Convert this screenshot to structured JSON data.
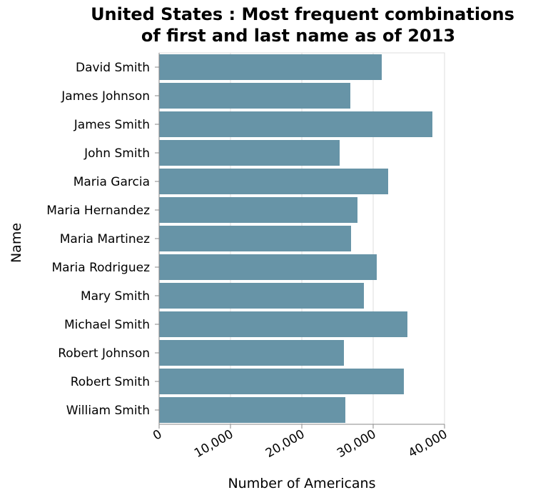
{
  "chart_data": {
    "type": "bar",
    "orientation": "horizontal",
    "title": [
      "United States : Most frequent combinations",
      "of first and last name as of 2013"
    ],
    "xlabel": "Number of Americans",
    "ylabel": "Name",
    "xlim": [
      0,
      40000
    ],
    "xticks": [
      0,
      10000,
      20000,
      30000,
      40000
    ],
    "xtick_labels": [
      "0",
      "10,000",
      "20,000",
      "30,000",
      "40,000"
    ],
    "grid": true,
    "bar_color": "#6794a7",
    "categories": [
      "David Smith",
      "James Johnson",
      "James Smith",
      "John Smith",
      "Maria Garcia",
      "Maria Hernandez",
      "Maria Martinez",
      "Maria Rodriguez",
      "Mary Smith",
      "Michael Smith",
      "Robert Johnson",
      "Robert Smith",
      "William Smith"
    ],
    "values": [
      31200,
      26800,
      38300,
      25300,
      32100,
      27800,
      26900,
      30500,
      28700,
      34800,
      25900,
      34300,
      26100
    ]
  }
}
